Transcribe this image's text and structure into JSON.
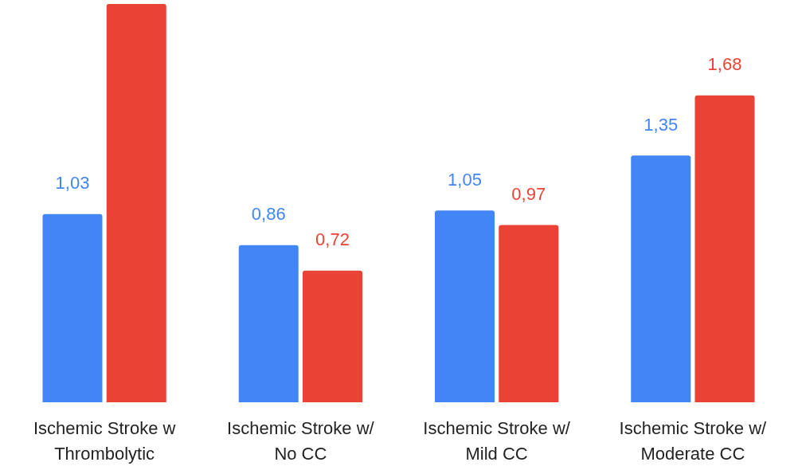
{
  "chart_data": {
    "type": "bar",
    "categories": [
      "Ischemic Stroke w\nThrombolytic",
      "Ischemic Stroke w/\nNo CC",
      "Ischemic Stroke w/\nMild CC",
      "Ischemic Stroke w/\nModerate CC"
    ],
    "series": [
      {
        "color": "#4285f4",
        "values": [
          1.03,
          0.86,
          1.05,
          1.35
        ],
        "value_labels": [
          "1,03",
          "0,86",
          "1,05",
          "1,35"
        ]
      },
      {
        "color": "#ea4335",
        "values": [
          2.18,
          0.72,
          0.97,
          1.68
        ],
        "value_labels": [
          null,
          "0,72",
          "0,97",
          "1,68"
        ]
      }
    ],
    "stacked": false
  }
}
